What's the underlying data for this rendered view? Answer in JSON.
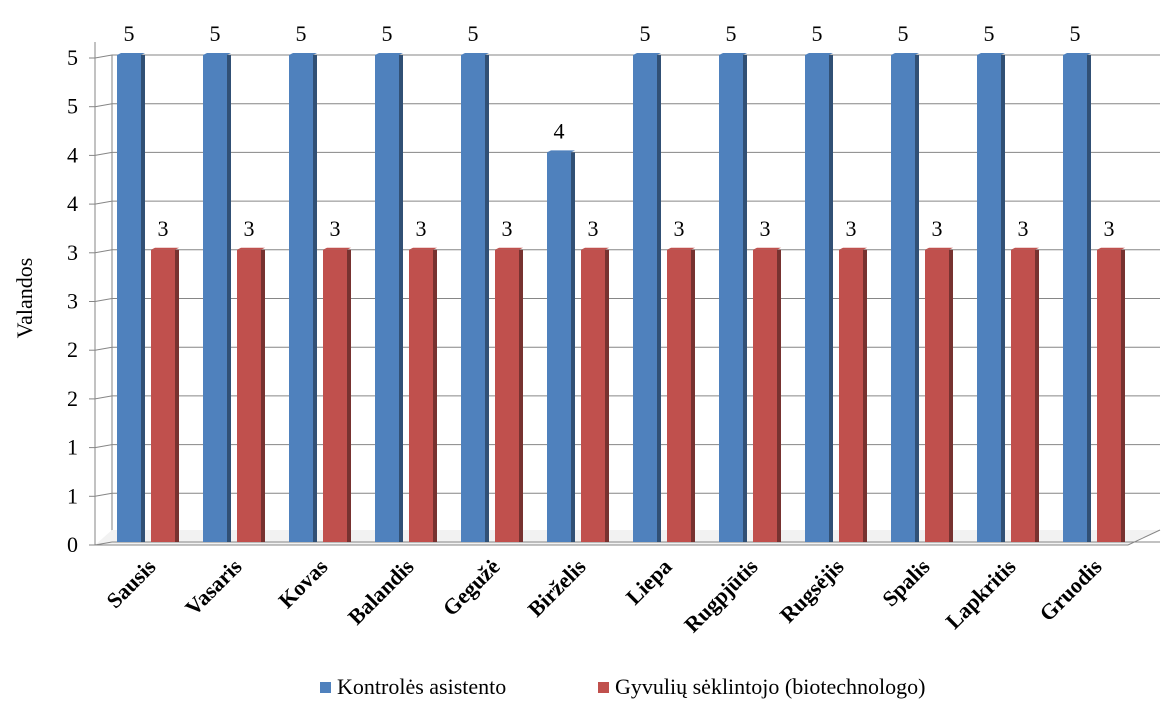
{
  "chart_data": {
    "type": "bar",
    "title": "",
    "xlabel": "",
    "ylabel": "Valandos",
    "ylim": [
      0,
      5
    ],
    "ytick_values": [
      0,
      0.5,
      1,
      1.5,
      2,
      2.5,
      3,
      3.5,
      4,
      4.5,
      5
    ],
    "ytick_labels": [
      "0",
      "1",
      "1",
      "2",
      "2",
      "3",
      "3",
      "4",
      "4",
      "5",
      "5"
    ],
    "grid": true,
    "legend_position": "bottom",
    "categories": [
      "Sausis",
      "Vasaris",
      "Kovas",
      "Balandis",
      "Gegužė",
      "Birželis",
      "Liepa",
      "Rugpjūtis",
      "Rugsėjis",
      "Spalis",
      "Lapkritis",
      "Gruodis"
    ],
    "series": [
      {
        "name": "Kontrolės asistento",
        "color": "#4f81bd",
        "values": [
          5,
          5,
          5,
          5,
          5,
          4,
          5,
          5,
          5,
          5,
          5,
          5
        ],
        "data_labels": [
          "5",
          "5",
          "5",
          "5",
          "5",
          "4",
          "5",
          "5",
          "5",
          "5",
          "5",
          "5"
        ]
      },
      {
        "name": "Gyvulių sėklintojo (biotechnologo)",
        "color": "#c0504d",
        "values": [
          3,
          3,
          3,
          3,
          3,
          3,
          3,
          3,
          3,
          3,
          3,
          3
        ],
        "data_labels": [
          "3",
          "3",
          "3",
          "3",
          "3",
          "3",
          "3",
          "3",
          "3",
          "3",
          "3",
          "3"
        ]
      }
    ]
  }
}
